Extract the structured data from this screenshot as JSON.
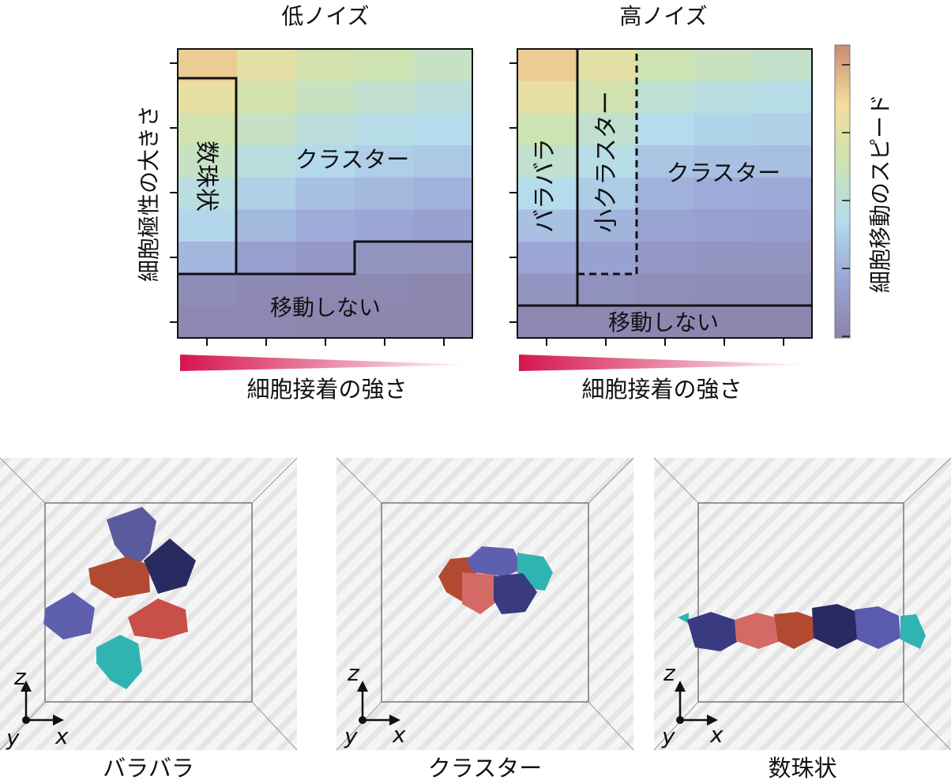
{
  "chart_data": [
    {
      "type": "heatmap",
      "title": "低ノイズ",
      "xlabel": "細胞接着の強さ",
      "ylabel": "細胞極性の大きさ",
      "colorbar_label": "細胞移動のスピード",
      "grid": {
        "cols": 5,
        "rows": 9,
        "speed": [
          [
            0.84,
            0.72,
            0.63,
            0.6,
            0.54
          ],
          [
            0.74,
            0.63,
            0.55,
            0.5,
            0.46
          ],
          [
            0.62,
            0.54,
            0.46,
            0.42,
            0.4
          ],
          [
            0.54,
            0.45,
            0.39,
            0.35,
            0.33
          ],
          [
            0.44,
            0.36,
            0.3,
            0.27,
            0.24
          ],
          [
            0.38,
            0.27,
            0.22,
            0.2,
            0.17
          ],
          [
            0.26,
            0.16,
            0.12,
            0.1,
            0.09
          ],
          [
            0.05,
            0.04,
            0.03,
            0.03,
            0.02
          ],
          [
            0.03,
            0.03,
            0.02,
            0.02,
            0.02
          ]
        ]
      },
      "regions": [
        {
          "label": "数珠状",
          "vertical": true
        },
        {
          "label": "クラスター"
        },
        {
          "label": "移動しない"
        }
      ]
    },
    {
      "type": "heatmap",
      "title": "高ノイズ",
      "xlabel": "細胞接着の強さ",
      "grid": {
        "cols": 5,
        "rows": 9,
        "speed": [
          [
            0.84,
            0.72,
            0.6,
            0.55,
            0.52
          ],
          [
            0.74,
            0.62,
            0.48,
            0.44,
            0.42
          ],
          [
            0.6,
            0.5,
            0.4,
            0.37,
            0.36
          ],
          [
            0.5,
            0.42,
            0.32,
            0.3,
            0.29
          ],
          [
            0.4,
            0.34,
            0.24,
            0.22,
            0.21
          ],
          [
            0.3,
            0.25,
            0.18,
            0.16,
            0.15
          ],
          [
            0.2,
            0.17,
            0.12,
            0.1,
            0.1
          ],
          [
            0.1,
            0.08,
            0.06,
            0.05,
            0.05
          ],
          [
            0.03,
            0.03,
            0.02,
            0.02,
            0.02
          ]
        ]
      },
      "regions": [
        {
          "label": "バラバラ",
          "vertical": true
        },
        {
          "label": "小クラスター",
          "vertical": true
        },
        {
          "label": "クラスター"
        },
        {
          "label": "移動しない"
        }
      ]
    }
  ],
  "snapshots": [
    {
      "caption": "バラバラ",
      "axes": {
        "z": "z",
        "y": "y",
        "x": "x"
      }
    },
    {
      "caption": "クラスター",
      "axes": {
        "z": "z",
        "y": "y",
        "x": "x"
      }
    },
    {
      "caption": "数珠状",
      "axes": {
        "z": "z",
        "y": "y",
        "x": "x"
      }
    }
  ]
}
